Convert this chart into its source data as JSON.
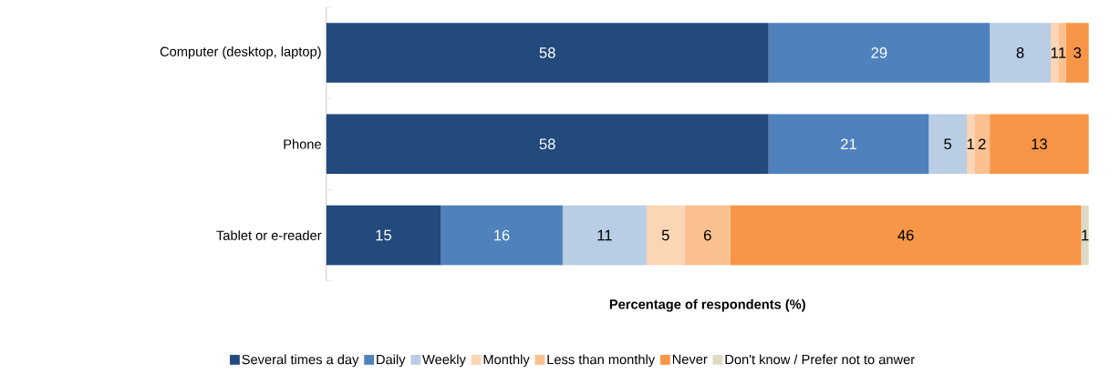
{
  "chart_data": {
    "type": "bar",
    "orientation": "horizontal",
    "stacked": true,
    "categories": [
      "Computer (desktop, laptop)",
      "Phone",
      "Tablet or e-reader"
    ],
    "series": [
      {
        "name": "Several times a day",
        "color": "#234a7d",
        "values": [
          58,
          58,
          15
        ],
        "value_labels": [
          "58",
          "58",
          "15"
        ]
      },
      {
        "name": "Daily",
        "color": "#4f81bd",
        "values": [
          29,
          21,
          16
        ],
        "value_labels": [
          "29",
          "21",
          "16"
        ]
      },
      {
        "name": "Weekly",
        "color": "#b9cde5",
        "values": [
          8,
          5,
          11
        ],
        "value_labels": [
          "8",
          "5",
          "11"
        ]
      },
      {
        "name": "Monthly",
        "color": "#fcd5b5",
        "values": [
          1,
          1,
          5
        ],
        "value_labels": [
          "1",
          "1",
          "5"
        ]
      },
      {
        "name": "Less than monthly",
        "color": "#fac090",
        "values": [
          1,
          2,
          6
        ],
        "value_labels": [
          "1",
          "2",
          "6"
        ]
      },
      {
        "name": "Never",
        "color": "#f79646",
        "values": [
          3,
          13,
          46
        ],
        "value_labels": [
          "3",
          "13",
          "46"
        ]
      },
      {
        "name": "Don't know / Prefer not to anwer",
        "color": "#ddd9c4",
        "values": [
          null,
          0,
          1
        ],
        "value_labels": [
          null,
          null,
          "1"
        ]
      }
    ],
    "xlim": [
      0,
      100
    ],
    "xlabel": "Percentage of respondents (%)",
    "legend": "bottom",
    "tick_labels": "y"
  }
}
